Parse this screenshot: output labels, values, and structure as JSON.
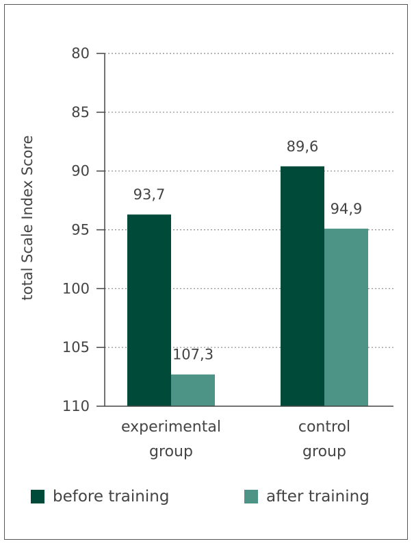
{
  "chart_data": {
    "type": "bar",
    "categories": [
      [
        "experimental",
        "group"
      ],
      [
        "control",
        "group"
      ]
    ],
    "series": [
      {
        "name": "before training",
        "values": [
          93.7,
          89.6
        ],
        "labels": [
          "93,7",
          "89,6"
        ],
        "color": "#004a3a"
      },
      {
        "name": "after training",
        "values": [
          107.3,
          94.9
        ],
        "labels": [
          "107,3",
          "94,9"
        ],
        "color": "#4e9486"
      }
    ],
    "ylabel": "total Scale Index Score",
    "yticks": [
      "80",
      "85",
      "90",
      "95",
      "100",
      "105",
      "110"
    ],
    "ylim": [
      110,
      80
    ],
    "grid": true,
    "legend_position": "bottom"
  }
}
